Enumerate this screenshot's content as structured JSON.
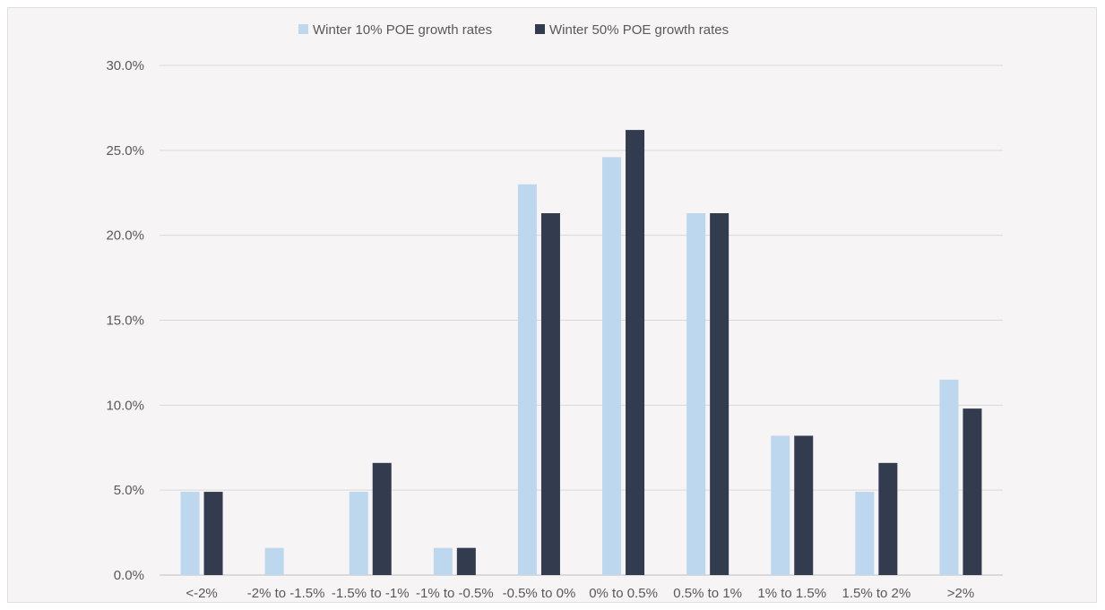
{
  "chart_data": {
    "type": "bar",
    "categories": [
      "<-2%",
      "-2% to -1.5%",
      "-1.5% to -1%",
      "-1% to -0.5%",
      "-0.5% to 0%",
      "0% to 0.5%",
      "0.5% to 1%",
      "1% to 1.5%",
      "1.5% to 2%",
      ">2%"
    ],
    "series": [
      {
        "name": "Winter 10% POE growth rates",
        "color": "#bdd7ee",
        "values": [
          4.9,
          1.6,
          4.9,
          1.6,
          23.0,
          24.6,
          21.3,
          8.2,
          4.9,
          11.5
        ]
      },
      {
        "name": "Winter 50% POE growth rates",
        "color": "#323c4e",
        "values": [
          4.9,
          0.0,
          6.6,
          1.6,
          21.3,
          26.2,
          21.3,
          8.2,
          6.6,
          9.8
        ]
      }
    ],
    "y_ticks": [
      "0.0%",
      "5.0%",
      "10.0%",
      "15.0%",
      "20.0%",
      "25.0%",
      "30.0%"
    ],
    "ylim": [
      0,
      30
    ],
    "grid": true,
    "legend_position": "top"
  }
}
